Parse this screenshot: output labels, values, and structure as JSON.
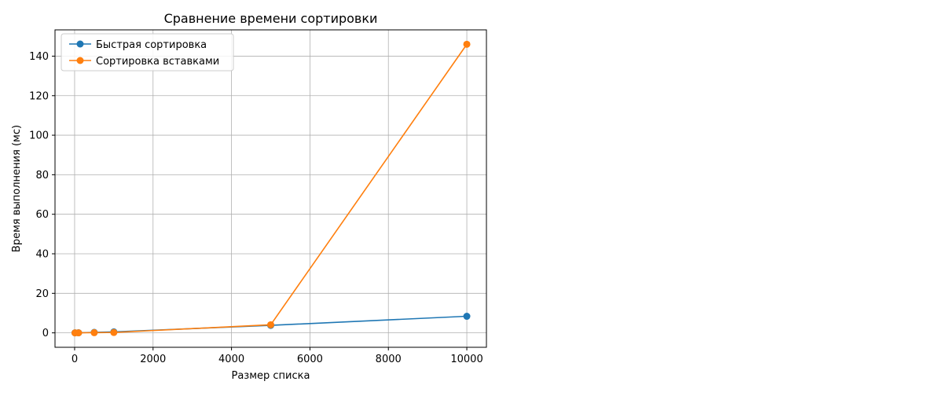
{
  "chart_data": {
    "type": "line",
    "title": "Сравнение времени сортировки",
    "xlabel": "Размер списка",
    "ylabel": "Время выполнения (мс)",
    "x": [
      10,
      100,
      500,
      1000,
      5000,
      10000
    ],
    "xlim": [
      -500,
      10500
    ],
    "ylim": [
      -7.3,
      153.3
    ],
    "xticks": [
      0,
      2000,
      4000,
      6000,
      8000,
      10000
    ],
    "xtick_labels": [
      "0",
      "2000",
      "4000",
      "6000",
      "8000",
      "10000"
    ],
    "yticks": [
      0,
      20,
      40,
      60,
      80,
      100,
      120,
      140
    ],
    "ytick_labels": [
      "0",
      "20",
      "40",
      "60",
      "80",
      "100",
      "120",
      "140"
    ],
    "grid": true,
    "legend": "upper left",
    "series": [
      {
        "name": "Быстрая сортировка",
        "color": "#1f77b4",
        "marker": "circle",
        "values": [
          0.01,
          0.05,
          0.25,
          0.5,
          3.8,
          8.4
        ]
      },
      {
        "name": "Сортировка вставками",
        "color": "#ff7f0e",
        "marker": "circle",
        "values": [
          0.0,
          0.02,
          0.1,
          0.2,
          4.1,
          146.0
        ]
      }
    ]
  }
}
